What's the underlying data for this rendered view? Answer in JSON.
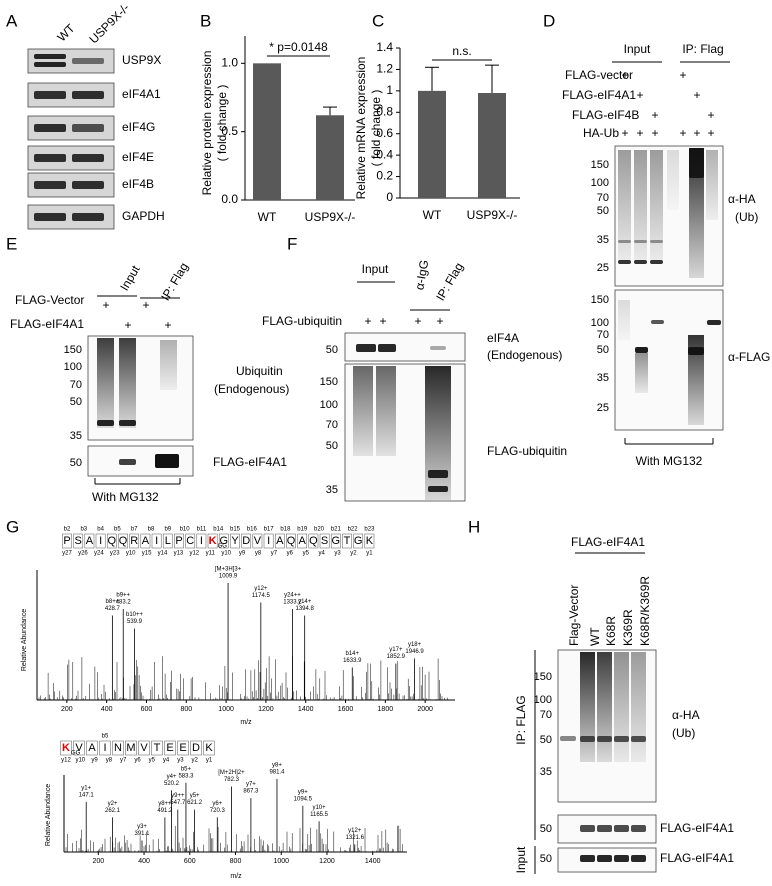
{
  "figure": {
    "A": {
      "label": "A",
      "lanes": [
        "WT",
        "USP9X-/-"
      ],
      "proteins": [
        "USP9X",
        "eIF4A1",
        "eIF4G",
        "eIF4E",
        "eIF4B",
        "GAPDH"
      ]
    },
    "D": {
      "label": "D",
      "groups": [
        "Input",
        "IP: Flag"
      ],
      "rows": [
        "FLAG-vector",
        "FLAG-eIF4A1",
        "FLAG-eIF4B",
        "HA-Ub"
      ],
      "signs": [
        [
          "+",
          null,
          null,
          "+",
          null,
          null
        ],
        [
          null,
          "+",
          null,
          null,
          "+",
          null
        ],
        [
          null,
          null,
          "+",
          null,
          null,
          "+"
        ],
        [
          "+",
          "+",
          "+",
          "+",
          "+",
          "+"
        ]
      ],
      "markers_top": [
        150,
        100,
        70,
        50,
        35,
        25
      ],
      "markers_bottom": [
        150,
        100,
        70,
        50,
        35,
        25
      ],
      "antibodies": [
        "α-HA",
        "(Ub)",
        "α-FLAG"
      ],
      "note": "With  MG132"
    },
    "E": {
      "label": "E",
      "groups": [
        "Input",
        "IP: Flag"
      ],
      "rows": [
        "FLAG-Vector",
        "FLAG-eIF4A1"
      ],
      "signs": [
        [
          "+",
          null,
          "+",
          null
        ],
        [
          null,
          "+",
          null,
          "+"
        ]
      ],
      "markers_top": [
        150,
        100,
        70,
        50,
        35
      ],
      "markers_bottom": [
        50
      ],
      "blot_labels": [
        "Ubiquitin",
        "(Endogenous)",
        "FLAG-eIF4A1"
      ],
      "note": "With  MG132"
    },
    "F": {
      "label": "F",
      "groups": [
        "Input",
        "α-IgG",
        "IP: Flag"
      ],
      "rows": [
        "FLAG-ubiquitin"
      ],
      "signs": [
        [
          "+",
          "+",
          "+",
          "+"
        ]
      ],
      "markers_top": [
        50
      ],
      "markers_bottom": [
        150,
        100,
        70,
        50,
        35
      ],
      "blot_labels": [
        "eIF4A",
        "(Endogenous)",
        "FLAG-ubiquitin"
      ]
    },
    "G": {
      "label": "G",
      "mod": "GG",
      "ylabel": "Relative Abundance",
      "xlabel": "m/z",
      "seq1": [
        "P",
        "S",
        "A",
        "I",
        "Q",
        "Q",
        "R",
        "A",
        "I",
        "L",
        "P",
        "C",
        "I",
        "K",
        "G",
        "Y",
        "D",
        "V",
        "I",
        "A",
        "Q",
        "A",
        "Q",
        "S",
        "G",
        "T",
        "G",
        "K"
      ],
      "b_ions1": [
        "b2",
        "b3",
        "b4",
        "b5",
        "b7",
        "b8",
        "b9",
        "b10",
        "b11",
        "b14",
        "b15",
        "b16",
        "b17",
        "b18",
        "b19",
        "b20",
        "b21",
        "b22",
        "b23"
      ],
      "y_ions1": [
        "y27",
        "y26",
        "y24",
        "y23",
        "y10",
        "y15",
        "y14",
        "y13",
        "y12",
        "y11",
        "y10",
        "y9",
        "y8",
        "y7",
        "y6",
        "y5",
        "y4",
        "y3",
        "y2",
        "y1"
      ],
      "xlim1": [
        50,
        2150
      ],
      "xticks1": [
        200,
        400,
        600,
        800,
        1000,
        1200,
        1400,
        1600,
        1800,
        2000
      ],
      "peaks1": [
        {
          "ion": "b8++",
          "mz": 428.7
        },
        {
          "ion": "b9++",
          "mz": 483.2
        },
        {
          "ion": "b10++",
          "mz": 539.9
        },
        {
          "ion": "[M+3H]3+",
          "mz": 1009.9
        },
        {
          "ion": "y12+",
          "mz": 1174.5
        },
        {
          "ion": "y24++",
          "mz": 1333.2
        },
        {
          "ion": "y14+",
          "mz": 1394.8
        },
        {
          "ion": "b14+",
          "mz": 1633.9
        },
        {
          "ion": "y17+",
          "mz": 1852.9
        },
        {
          "ion": "y18+",
          "mz": 1946.9
        }
      ],
      "seq2": [
        "K",
        "V",
        "A",
        "I",
        "N",
        "M",
        "V",
        "T",
        "E",
        "E",
        "D",
        "K"
      ],
      "b_ions2": [
        "b5"
      ],
      "y_ions2": [
        "y12",
        "y10",
        "y9",
        "y8",
        "y7",
        "y6",
        "y5",
        "y4",
        "y3",
        "y2",
        "y1"
      ],
      "xlim2": [
        50,
        1550
      ],
      "xticks2": [
        200,
        400,
        600,
        800,
        1000,
        1200,
        1400
      ],
      "peaks2": [
        {
          "ion": "y1+",
          "mz": 147.1
        },
        {
          "ion": "y2+",
          "mz": 262.1
        },
        {
          "ion": "y3+",
          "mz": 391.1
        },
        {
          "ion": "y8++",
          "mz": 491.2
        },
        {
          "ion": "y4+",
          "mz": 520.2
        },
        {
          "ion": "y9++",
          "mz": 547.7
        },
        {
          "ion": "b5+",
          "mz": 583.3
        },
        {
          "ion": "y5+",
          "mz": 621.2
        },
        {
          "ion": "y6+",
          "mz": 720.3
        },
        {
          "ion": "[M+2H]2+",
          "mz": 782.3
        },
        {
          "ion": "y7+",
          "mz": 867.3
        },
        {
          "ion": "y8+",
          "mz": 981.4
        },
        {
          "ion": "y9+",
          "mz": 1094.5
        },
        {
          "ion": "y10+",
          "mz": 1165.5
        },
        {
          "ion": "y12+",
          "mz": 1321.6
        }
      ]
    },
    "H": {
      "label": "H",
      "group": "FLAG-eIF4A1",
      "lanes": [
        "Flag-Vector",
        "WT",
        "K68R",
        "K369R",
        "K68R/K369R"
      ],
      "sections": [
        "IP: FLAG",
        "Input"
      ],
      "markers_top": [
        150,
        100,
        70,
        50,
        35
      ],
      "markers_mid": [
        50
      ],
      "markers_bottom": [
        50
      ],
      "blot_labels": [
        "α-HA",
        "(Ub)",
        "FLAG-eIF4A1",
        "FLAG-eIF4A1"
      ]
    }
  },
  "chart_data": [
    {
      "type": "bar",
      "label": "B",
      "ylabel": [
        "Relative protein expression",
        "( fold change )"
      ],
      "categories": [
        "WT",
        "USP9X-/-"
      ],
      "values": [
        1.0,
        0.62
      ],
      "errors": [
        null,
        0.06
      ],
      "color": "#595959",
      "ylim": [
        0,
        1.2
      ],
      "yticks": [
        {
          "value": 0,
          "label": "0.0"
        },
        {
          "value": 0.5,
          "label": "0.5"
        },
        {
          "value": 1,
          "label": "1.0"
        }
      ],
      "annotation": "*  p=0.0148"
    },
    {
      "type": "bar",
      "label": "C",
      "ylabel": [
        "Relative mRNA expression",
        "( fold change )"
      ],
      "categories": [
        "WT",
        "USP9X-/-"
      ],
      "values": [
        1.0,
        0.98
      ],
      "errors": [
        0.22,
        0.26
      ],
      "color": "#595959",
      "ylim": [
        0,
        1.4
      ],
      "yticks": [
        0,
        0.2,
        0.4,
        0.6,
        0.8,
        1,
        1.2,
        1.4
      ],
      "annotation": "n.s."
    }
  ]
}
